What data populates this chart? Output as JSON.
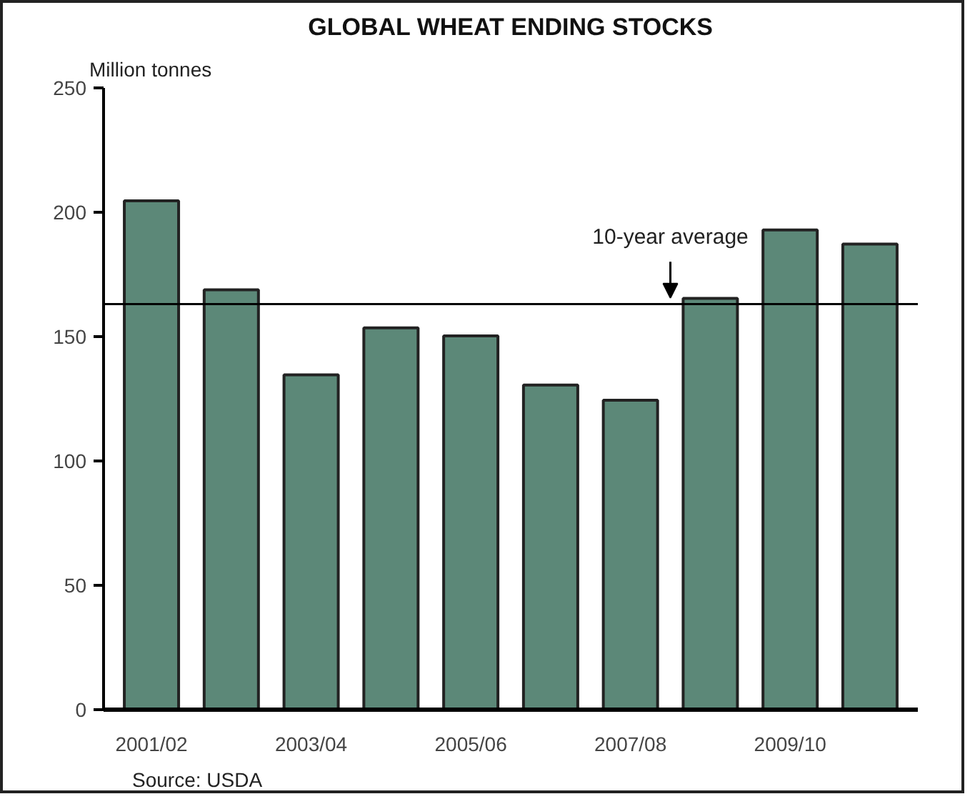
{
  "chart_data": {
    "type": "bar",
    "title": "GLOBAL WHEAT ENDING STOCKS",
    "ylabel": "Million tonnes",
    "categories": [
      "2001/02",
      null,
      "2003/04",
      null,
      "2005/06",
      null,
      "2007/08",
      null,
      "2009/10",
      null
    ],
    "values": [
      204.6,
      168.8,
      134.6,
      153.5,
      150.3,
      130.5,
      124.4,
      165.4,
      192.9,
      187.2
    ],
    "color": "#5c8878",
    "ylim": [
      0,
      250
    ],
    "yticks": [
      0,
      50,
      100,
      150,
      200,
      250
    ],
    "ref_lines": [
      {
        "axis": "y",
        "value": 163.1,
        "label": "10-year average",
        "color": "#000000"
      }
    ],
    "annotations": [
      "Source: USDA"
    ],
    "grid": false
  }
}
